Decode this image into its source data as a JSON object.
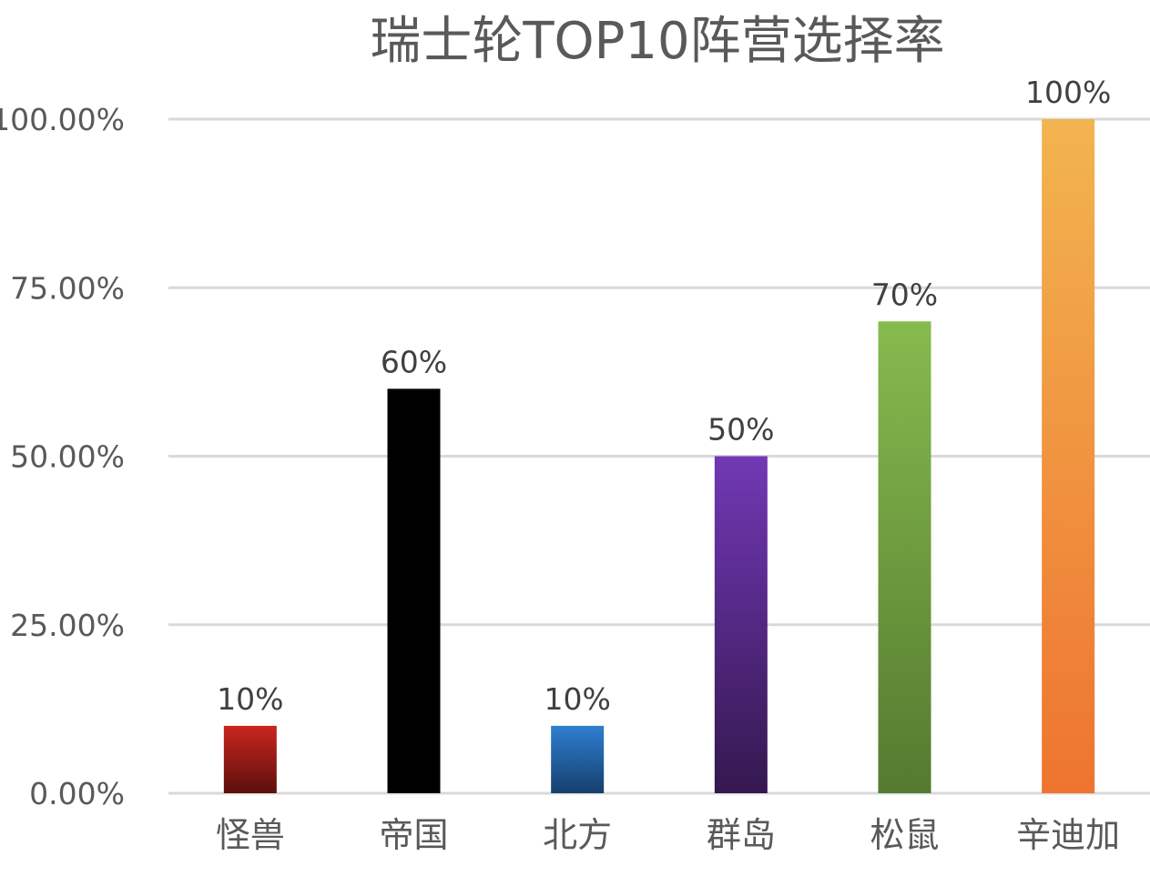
{
  "chart_data": {
    "type": "bar",
    "title": "瑞士轮TOP10阵营选择率",
    "categories": [
      "怪兽",
      "帝国",
      "北方",
      "群岛",
      "松鼠",
      "辛迪加"
    ],
    "values": [
      0.1,
      0.6,
      0.1,
      0.5,
      0.7,
      1.0
    ],
    "data_labels": [
      "10%",
      "60%",
      "10%",
      "50%",
      "70%",
      "100%"
    ],
    "ylim": [
      0,
      1
    ],
    "yticks": [
      {
        "value": 0,
        "label": "0.00%"
      },
      {
        "value": 0.25,
        "label": "25.00%"
      },
      {
        "value": 0.5,
        "label": "50.00%"
      },
      {
        "value": 0.75,
        "label": "75.00%"
      },
      {
        "value": 1,
        "label": "100.00%"
      }
    ],
    "grid": true,
    "legend": "none",
    "bar_colors": [
      [
        "#c9261f",
        "#5c0f0c"
      ],
      [
        "#000000",
        "#000000"
      ],
      [
        "#2f7fd0",
        "#153f6e"
      ],
      [
        "#7138b5",
        "#34184f"
      ],
      [
        "#86bb4e",
        "#547a2f"
      ],
      [
        "#f2b450",
        "#ee7430"
      ]
    ]
  }
}
